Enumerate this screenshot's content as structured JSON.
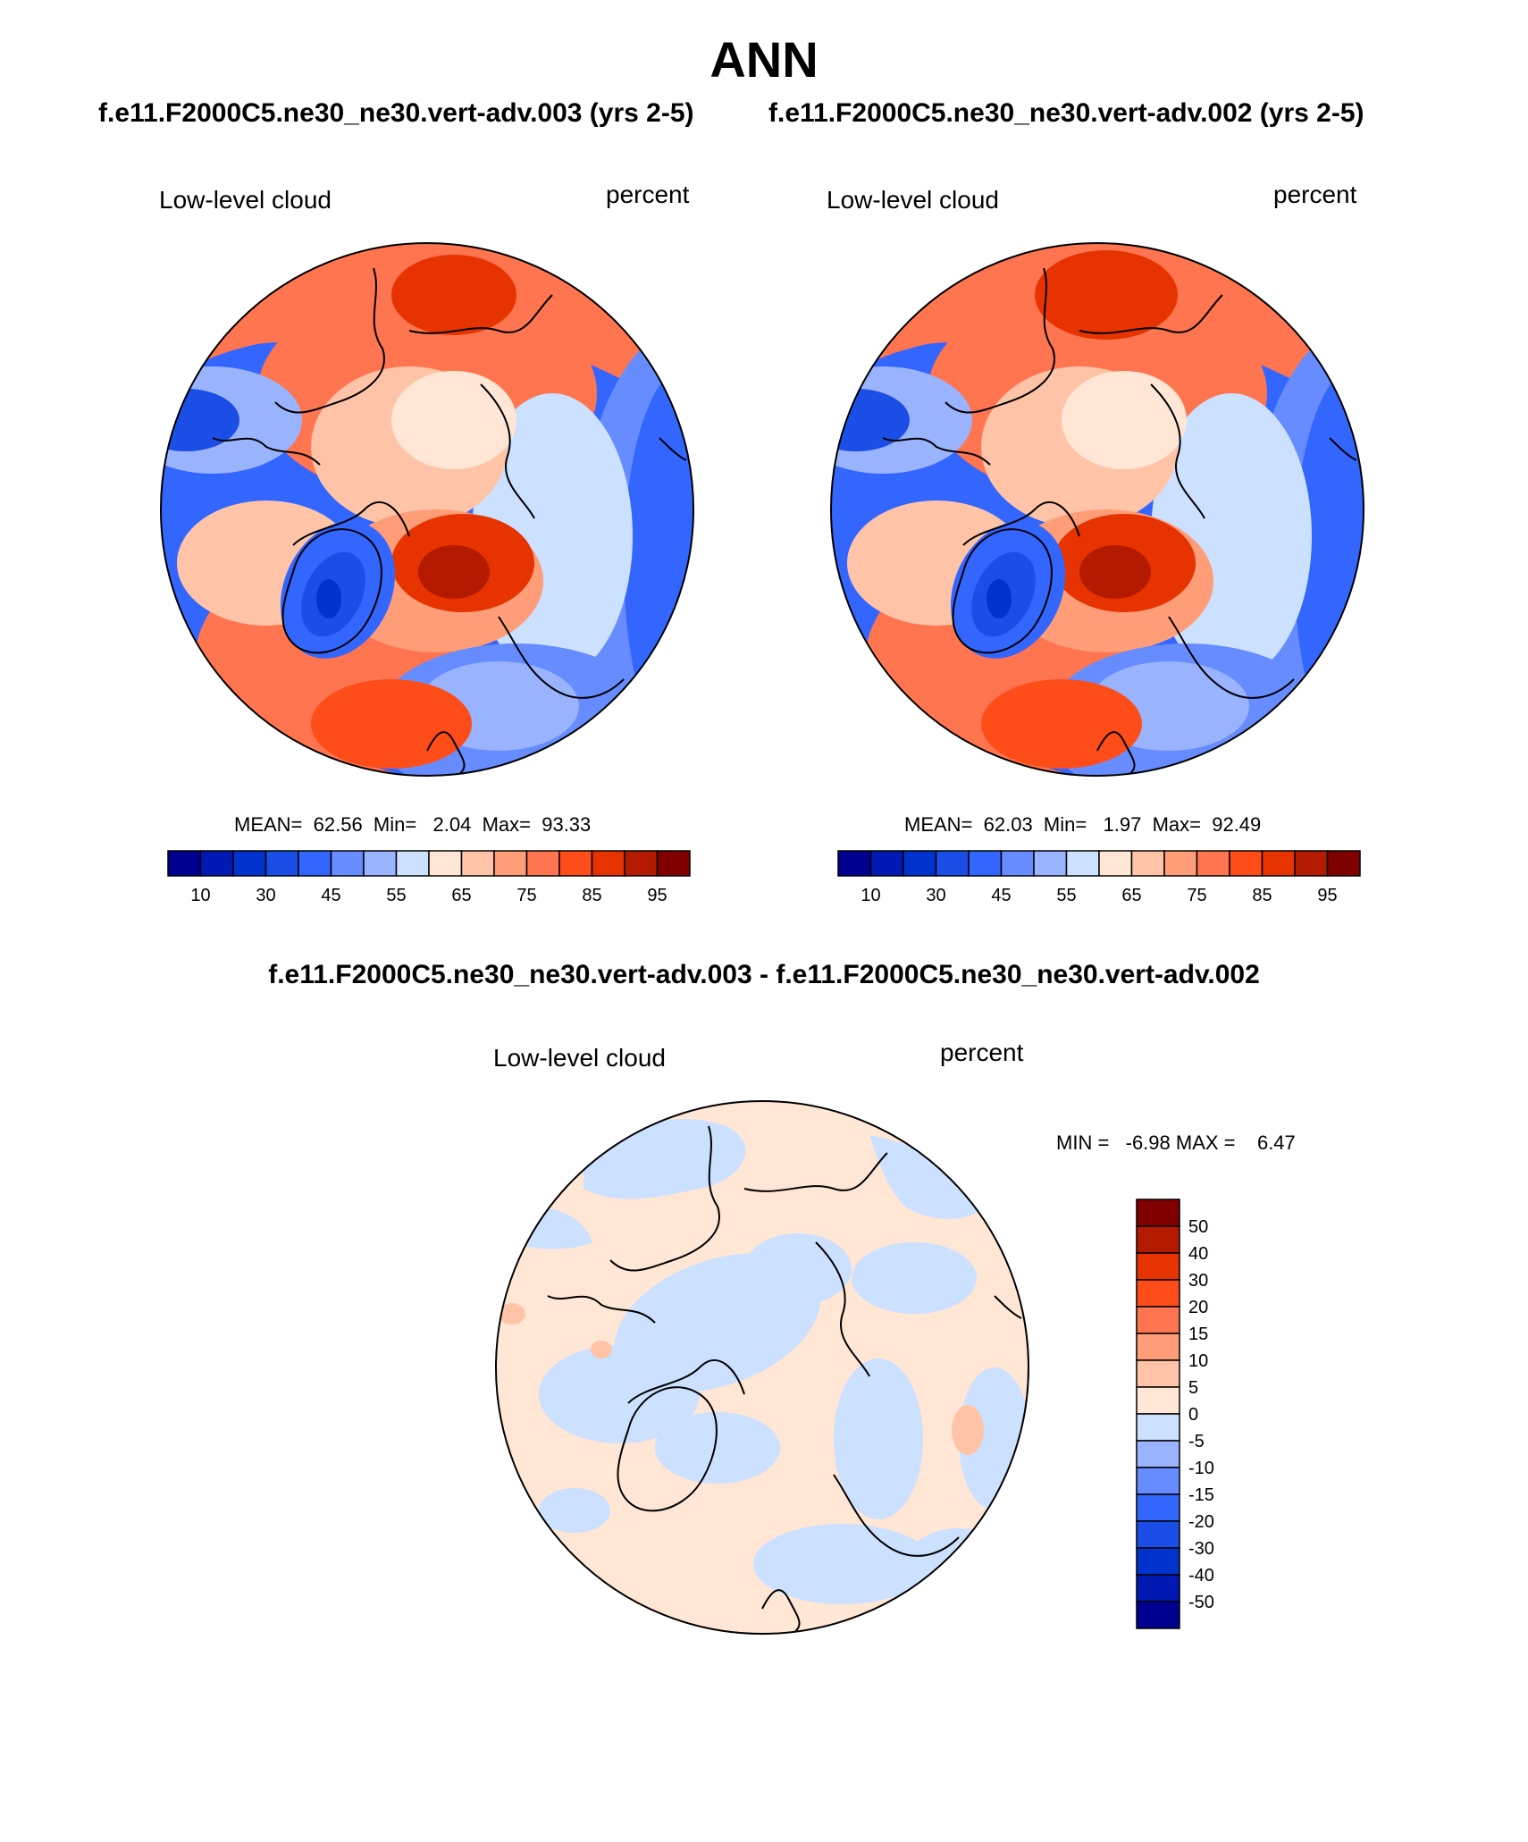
{
  "page": {
    "title": "ANN",
    "case_left": "f.e11.F2000C5.ne30_ne30.vert-adv.003 (yrs 2-5)",
    "case_right": "f.e11.F2000C5.ne30_ne30.vert-adv.002 (yrs 2-5)",
    "diff_title": "f.e11.F2000C5.ne30_ne30.vert-adv.003 - f.e11.F2000C5.ne30_ne30.vert-adv.002"
  },
  "panels": [
    {
      "variable": "Low-level cloud",
      "units": "percent",
      "stats": "MEAN=  62.56  Min=   2.04  Max=  93.33",
      "mean": 62.56,
      "min": 2.04,
      "max": 93.33
    },
    {
      "variable": "Low-level cloud",
      "units": "percent",
      "stats": "MEAN=  62.03  Min=   1.97  Max=  92.49",
      "mean": 62.03,
      "min": 1.97,
      "max": 92.49
    },
    {
      "variable": "Low-level cloud",
      "units": "percent",
      "stats": "MIN =   -6.98 MAX =    6.47",
      "min": -6.98,
      "max": 6.47
    }
  ],
  "colorbar_main": {
    "colors": [
      "#000090",
      "#0019b3",
      "#0033cc",
      "#1a4ee6",
      "#3366ff",
      "#668cff",
      "#99b3ff",
      "#cce0ff",
      "#ffe6d5",
      "#ffc4a8",
      "#ff9d78",
      "#ff7550",
      "#ff4d1a",
      "#e63300",
      "#b31a00",
      "#800000"
    ],
    "labels": [
      "10",
      "30",
      "45",
      "55",
      "65",
      "75",
      "85",
      "95"
    ]
  },
  "colorbar_diff": {
    "colors": [
      "#800000",
      "#b31a00",
      "#e63300",
      "#ff4d1a",
      "#ff7550",
      "#ff9d78",
      "#ffc4a8",
      "#ffe6d5",
      "#cce0ff",
      "#99b3ff",
      "#668cff",
      "#3366ff",
      "#1a4ee6",
      "#0033cc",
      "#0019b3",
      "#000090"
    ],
    "labels": [
      "50",
      "40",
      "30",
      "20",
      "15",
      "10",
      "5",
      "0",
      "-5",
      "-10",
      "-15",
      "-20",
      "-30",
      "-40",
      "-50"
    ]
  },
  "colors": {
    "diff_positive": "#ffe6d5",
    "diff_negative": "#cce0ff"
  }
}
